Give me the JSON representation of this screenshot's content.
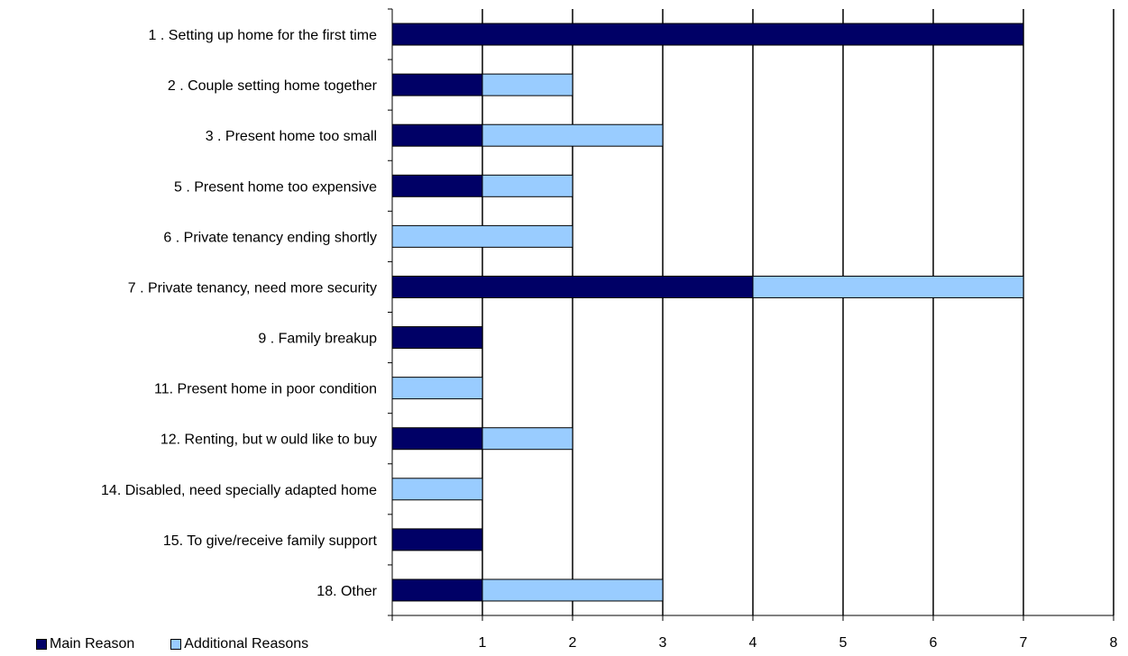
{
  "chart_data": {
    "type": "bar",
    "orientation": "horizontal",
    "stacked": true,
    "categories": [
      "1 . Setting up home for the first time",
      "2 . Couple setting home together",
      "3 . Present home too small",
      "5 . Present home too expensive",
      "6 . Private tenancy ending shortly",
      "7 . Private tenancy, need more security",
      "9 . Family breakup",
      "11. Present home in poor condition",
      "12. Renting, but w ould like to buy",
      "14. Disabled, need specially adapted home",
      "15. To give/receive family support",
      "18. Other"
    ],
    "series": [
      {
        "name": "Main Reason",
        "color": "#000066",
        "values": [
          7,
          1,
          1,
          1,
          0,
          4,
          1,
          0,
          1,
          0,
          1,
          1
        ]
      },
      {
        "name": "Additional Reasons",
        "color": "#99ccff",
        "values": [
          0,
          1,
          2,
          1,
          2,
          3,
          0,
          1,
          1,
          1,
          0,
          2
        ]
      }
    ],
    "xlim": [
      0,
      8
    ],
    "xticks": [
      1,
      2,
      3,
      4,
      5,
      6,
      7,
      8
    ],
    "grid": true,
    "legend_position": "bottom-left",
    "title": "",
    "xlabel": "",
    "ylabel": ""
  }
}
